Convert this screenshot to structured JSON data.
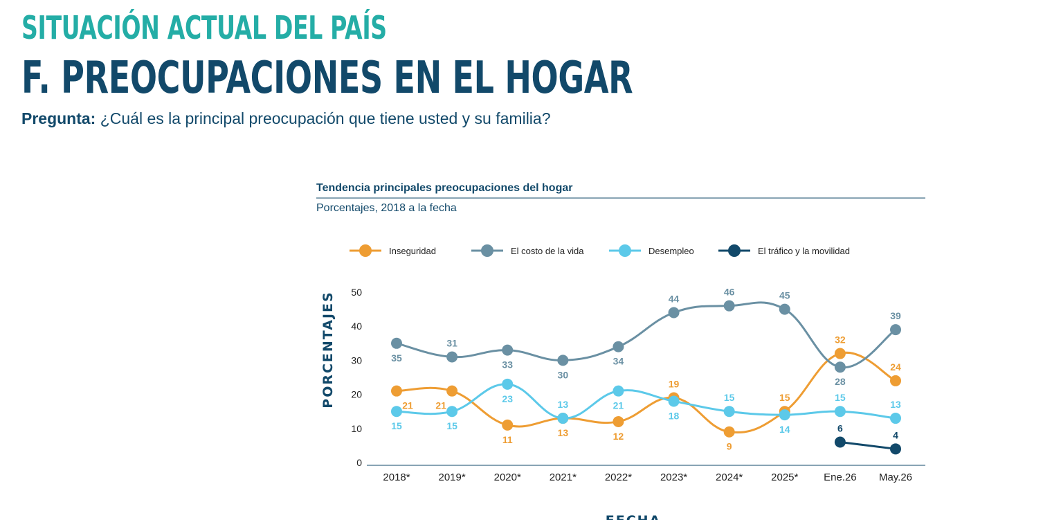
{
  "header": {
    "overtitle": "SITUACIÓN ACTUAL DEL PAÍS",
    "title": "F. PREOCUPACIONES EN EL HOGAR",
    "question_label": "Pregunta:",
    "question_text": "¿Cuál es la principal preocupación que tiene usted y su familia?"
  },
  "chart_data": {
    "type": "line",
    "title": "Tendencia principales preocupaciones del hogar",
    "subtitle": "Porcentajes, 2018 a la fecha",
    "xlabel": "FECHA",
    "ylabel": "PORCENTAJES",
    "categories": [
      "2018*",
      "2019*",
      "2020*",
      "2021*",
      "2022*",
      "2023*",
      "2024*",
      "2025*",
      "Ene.26",
      "May.26"
    ],
    "y_ticks": [
      "0",
      "10",
      "20",
      "30",
      "40",
      "50"
    ],
    "ylim": [
      0,
      50
    ],
    "legend_position": "top",
    "grid": false,
    "series": [
      {
        "name": "Inseguridad",
        "color": "#ee9d33",
        "values": [
          21,
          21,
          11,
          13,
          12,
          19,
          9,
          15,
          32,
          24
        ]
      },
      {
        "name": "El costo de la vida",
        "color": "#6a90a3",
        "values": [
          35,
          31,
          33,
          30,
          34,
          44,
          46,
          45,
          28,
          39
        ]
      },
      {
        "name": "Desempleo",
        "color": "#5cc9e9",
        "values": [
          15,
          15,
          23,
          13,
          21,
          18,
          15,
          14,
          15,
          13
        ]
      },
      {
        "name": "El tráfico y la movilidad",
        "color": "#12496a",
        "values": [
          null,
          null,
          null,
          null,
          null,
          null,
          null,
          null,
          6,
          4
        ]
      }
    ]
  }
}
